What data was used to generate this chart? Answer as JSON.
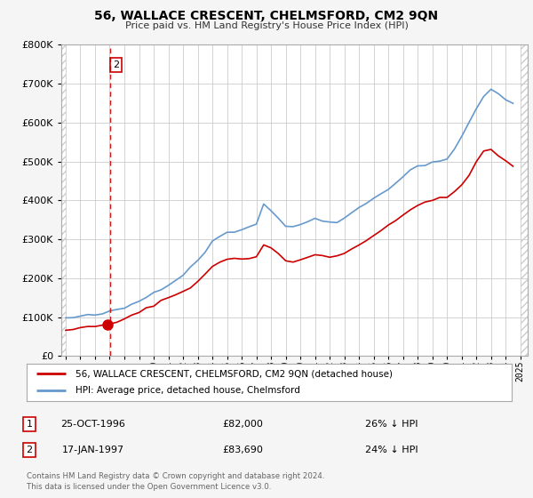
{
  "title": "56, WALLACE CRESCENT, CHELMSFORD, CM2 9QN",
  "subtitle": "Price paid vs. HM Land Registry's House Price Index (HPI)",
  "legend_line1": "56, WALLACE CRESCENT, CHELMSFORD, CM2 9QN (detached house)",
  "legend_line2": "HPI: Average price, detached house, Chelmsford",
  "footnote1": "Contains HM Land Registry data © Crown copyright and database right 2024.",
  "footnote2": "This data is licensed under the Open Government Licence v3.0.",
  "table_row1": [
    "1",
    "25-OCT-1996",
    "£82,000",
    "26% ↓ HPI"
  ],
  "table_row2": [
    "2",
    "17-JAN-1997",
    "£83,690",
    "24% ↓ HPI"
  ],
  "red_color": "#cc0000",
  "blue_color": "#6699cc",
  "background_color": "#f5f5f5",
  "plot_bg": "#ffffff",
  "hatch_color": "#e0e0e0",
  "ylim": [
    0,
    800000
  ],
  "yticks": [
    0,
    100000,
    200000,
    300000,
    400000,
    500000,
    600000,
    700000,
    800000
  ],
  "xlim_start": 1993.7,
  "xlim_end": 2025.5,
  "xticks": [
    1994,
    1995,
    1996,
    1997,
    1998,
    1999,
    2000,
    2001,
    2002,
    2003,
    2004,
    2005,
    2006,
    2007,
    2008,
    2009,
    2010,
    2011,
    2012,
    2013,
    2014,
    2015,
    2016,
    2017,
    2018,
    2019,
    2020,
    2021,
    2022,
    2023,
    2024,
    2025
  ],
  "sale1_x": 1996.82,
  "sale1_y": 82000,
  "sale2_x": 1997.05,
  "sale2_y": 83690,
  "vline_x": 1997.05,
  "hpi_years": [
    1994.0,
    1994.5,
    1995.0,
    1995.5,
    1996.0,
    1996.5,
    1997.0,
    1997.5,
    1998.0,
    1998.5,
    1999.0,
    1999.5,
    2000.0,
    2000.5,
    2001.0,
    2001.5,
    2002.0,
    2002.5,
    2003.0,
    2003.5,
    2004.0,
    2004.5,
    2005.0,
    2005.5,
    2006.0,
    2006.5,
    2007.0,
    2007.5,
    2008.0,
    2008.5,
    2009.0,
    2009.5,
    2010.0,
    2010.5,
    2011.0,
    2011.5,
    2012.0,
    2012.5,
    2013.0,
    2013.5,
    2014.0,
    2014.5,
    2015.0,
    2015.5,
    2016.0,
    2016.5,
    2017.0,
    2017.5,
    2018.0,
    2018.5,
    2019.0,
    2019.5,
    2020.0,
    2020.5,
    2021.0,
    2021.5,
    2022.0,
    2022.5,
    2023.0,
    2023.5,
    2024.0,
    2024.5
  ],
  "hpi_vals": [
    97000,
    99000,
    101000,
    103000,
    106000,
    109000,
    112000,
    118000,
    124000,
    132000,
    142000,
    152000,
    163000,
    175000,
    186000,
    196000,
    210000,
    228000,
    248000,
    270000,
    292000,
    308000,
    318000,
    322000,
    326000,
    332000,
    342000,
    390000,
    375000,
    355000,
    335000,
    328000,
    338000,
    348000,
    352000,
    350000,
    344000,
    348000,
    358000,
    368000,
    380000,
    392000,
    406000,
    418000,
    432000,
    446000,
    462000,
    476000,
    488000,
    494000,
    498000,
    502000,
    508000,
    530000,
    562000,
    598000,
    638000,
    668000,
    685000,
    672000,
    660000,
    650000
  ],
  "red_years": [
    1994.0,
    1994.5,
    1995.0,
    1995.5,
    1996.0,
    1996.5,
    1997.0,
    1997.5,
    1998.0,
    1998.5,
    1999.0,
    1999.5,
    2000.0,
    2000.5,
    2001.0,
    2001.5,
    2002.0,
    2002.5,
    2003.0,
    2003.5,
    2004.0,
    2004.5,
    2005.0,
    2005.5,
    2006.0,
    2006.5,
    2007.0,
    2007.5,
    2008.0,
    2008.5,
    2009.0,
    2009.5,
    2010.0,
    2010.5,
    2011.0,
    2011.5,
    2012.0,
    2012.5,
    2013.0,
    2013.5,
    2014.0,
    2014.5,
    2015.0,
    2015.5,
    2016.0,
    2016.5,
    2017.0,
    2017.5,
    2018.0,
    2018.5,
    2019.0,
    2019.5,
    2020.0,
    2020.5,
    2021.0,
    2021.5,
    2022.0,
    2022.5,
    2023.0,
    2023.5,
    2024.0,
    2024.5
  ],
  "red_vals": [
    68000,
    70000,
    72000,
    74000,
    76000,
    78000,
    82000,
    88000,
    95000,
    103000,
    112000,
    122000,
    132000,
    142000,
    150000,
    158000,
    166000,
    178000,
    192000,
    210000,
    228000,
    242000,
    250000,
    252000,
    248000,
    250000,
    256000,
    285000,
    278000,
    262000,
    246000,
    242000,
    248000,
    256000,
    260000,
    258000,
    254000,
    258000,
    266000,
    276000,
    286000,
    298000,
    310000,
    322000,
    334000,
    348000,
    362000,
    376000,
    390000,
    396000,
    400000,
    404000,
    408000,
    422000,
    440000,
    466000,
    498000,
    526000,
    530000,
    516000,
    500000,
    490000
  ]
}
